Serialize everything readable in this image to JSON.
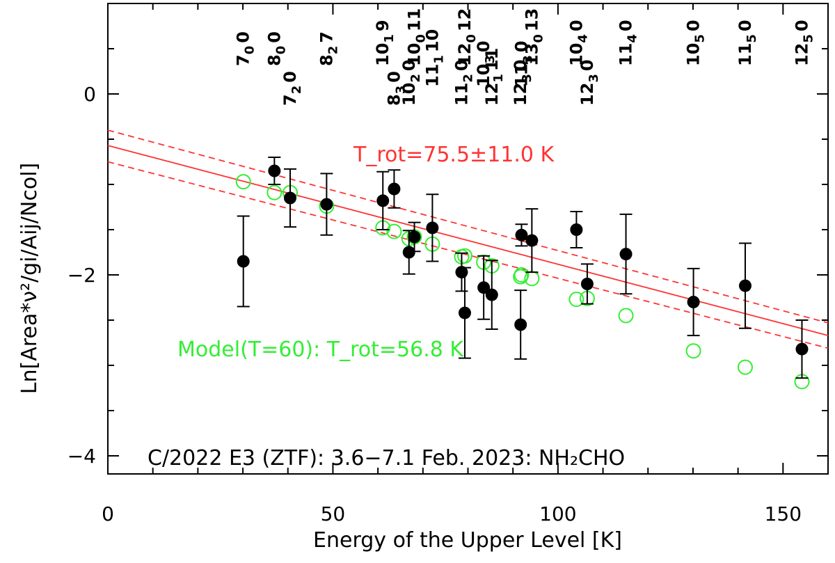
{
  "chart_data": {
    "type": "scatter",
    "title": "C/2022 E3 (ZTF): 3.6−7.1 Feb. 2023: NH₂CHO",
    "xlabel": "Energy of the Upper Level [K]",
    "ylabel": "Ln[Area*ν²/gi/Aij/Ncol]",
    "xlim": [
      0,
      160
    ],
    "ylim": [
      -4.2,
      1.0
    ],
    "x_ticks": [
      0,
      50,
      100,
      150
    ],
    "x_tick_labels": [
      "0",
      "50",
      "100",
      "150"
    ],
    "y_ticks": [
      0,
      -2,
      -4
    ],
    "y_tick_labels": [
      "0",
      "−2",
      "−4"
    ],
    "fit_label": "T_rot=75.5±11.0 K",
    "model_label": "Model(T=60): T_rot=56.8 K",
    "colors": {
      "fit": "#ff3333",
      "model": "#33ee33",
      "obs": "#000000"
    },
    "series": [
      {
        "name": "Observed",
        "style": "filled-circle",
        "x": [
          30.1,
          37.0,
          40.5,
          48.6,
          61.1,
          63.6,
          66.9,
          68.1,
          72.1,
          78.6,
          79.3,
          83.5,
          85.3,
          91.7,
          91.9,
          94.2,
          104.1,
          106.5,
          115.1,
          130.1,
          141.6,
          154.2
        ],
        "y": [
          -1.85,
          -0.85,
          -1.15,
          -1.22,
          -1.18,
          -1.05,
          -1.75,
          -1.58,
          -1.48,
          -1.97,
          -2.42,
          -2.14,
          -2.22,
          -2.55,
          -1.56,
          -1.62,
          -1.5,
          -2.1,
          -1.77,
          -2.3,
          -2.12,
          -2.82
        ],
        "err": [
          0.5,
          0.15,
          0.32,
          0.34,
          0.32,
          0.21,
          0.24,
          0.16,
          0.37,
          0.21,
          0.5,
          0.35,
          0.38,
          0.38,
          0.12,
          0.35,
          0.2,
          0.22,
          0.44,
          0.37,
          0.47,
          0.32
        ]
      },
      {
        "name": "Model(T=60)",
        "style": "open-circle",
        "x": [
          30.1,
          37.0,
          40.5,
          48.6,
          61.1,
          63.6,
          66.9,
          68.1,
          72.1,
          78.6,
          79.3,
          83.5,
          85.3,
          91.7,
          91.9,
          94.2,
          104.1,
          106.5,
          115.1,
          130.1,
          141.6,
          154.2
        ],
        "y": [
          -0.97,
          -1.09,
          -1.09,
          -1.24,
          -1.48,
          -1.52,
          -1.6,
          -1.58,
          -1.66,
          -1.8,
          -1.79,
          -1.86,
          -1.9,
          -2.02,
          -2.0,
          -2.04,
          -2.27,
          -2.26,
          -2.45,
          -2.84,
          -3.02,
          -3.18
        ]
      }
    ],
    "fit_line": {
      "x": [
        0,
        160
      ],
      "y": [
        -0.57,
        -2.67
      ]
    },
    "fit_upper": {
      "x": [
        0,
        160
      ],
      "y": [
        -0.4,
        -2.53
      ]
    },
    "fit_lower": {
      "x": [
        0,
        160
      ],
      "y": [
        -0.75,
        -2.81
      ]
    },
    "transition_labels": [
      {
        "x": 30.1,
        "row": 0,
        "main": "7",
        "sub": "0",
        "tail": "0"
      },
      {
        "x": 37.0,
        "row": 0,
        "main": "8",
        "sub": "0",
        "tail": "0"
      },
      {
        "x": 40.5,
        "row": 2,
        "main": "7",
        "sub": "2",
        "tail": "0"
      },
      {
        "x": 48.6,
        "row": 0,
        "main": "8",
        "sub": "2",
        "tail": "7"
      },
      {
        "x": 61.1,
        "row": 0,
        "main": "10",
        "sub": "1",
        "tail": "9"
      },
      {
        "x": 63.6,
        "row": 2,
        "main": "8",
        "sub": "3",
        "tail": "0"
      },
      {
        "x": 66.9,
        "row": 2,
        "main": "10",
        "sub": "2",
        "tail": "0"
      },
      {
        "x": 68.1,
        "row": 0,
        "main": "10",
        "sub": "0",
        "tail": "11"
      },
      {
        "x": 72.1,
        "row": 1,
        "main": "11",
        "sub": "1",
        "tail": "10"
      },
      {
        "x": 78.6,
        "row": 2,
        "main": "11",
        "sub": "2",
        "tail": "0"
      },
      {
        "x": 79.3,
        "row": 0,
        "main": "12",
        "sub": "0",
        "tail": "12"
      },
      {
        "x": 83.5,
        "row": 1,
        "main": "10",
        "sub": "3",
        "tail": "0"
      },
      {
        "x": 85.3,
        "row": 2,
        "main": "12",
        "sub": "1",
        "tail": "11"
      },
      {
        "x": 91.7,
        "row": 2,
        "main": "12",
        "sub": "3",
        "tail": "0"
      },
      {
        "x": 91.9,
        "row": 1,
        "main": "11",
        "sub": "3",
        "tail": "0"
      },
      {
        "x": 94.2,
        "row": 0,
        "main": "13",
        "sub": "0",
        "tail": "13"
      },
      {
        "x": 104.1,
        "row": 0,
        "main": "10",
        "sub": "4",
        "tail": "0"
      },
      {
        "x": 106.5,
        "row": 2,
        "main": "12",
        "sub": "3",
        "tail": "0"
      },
      {
        "x": 115.1,
        "row": 0,
        "main": "11",
        "sub": "4",
        "tail": "0"
      },
      {
        "x": 130.1,
        "row": 0,
        "main": "10",
        "sub": "5",
        "tail": "0"
      },
      {
        "x": 141.6,
        "row": 0,
        "main": "11",
        "sub": "5",
        "tail": "0"
      },
      {
        "x": 154.2,
        "row": 0,
        "main": "12",
        "sub": "5",
        "tail": "0"
      }
    ]
  }
}
